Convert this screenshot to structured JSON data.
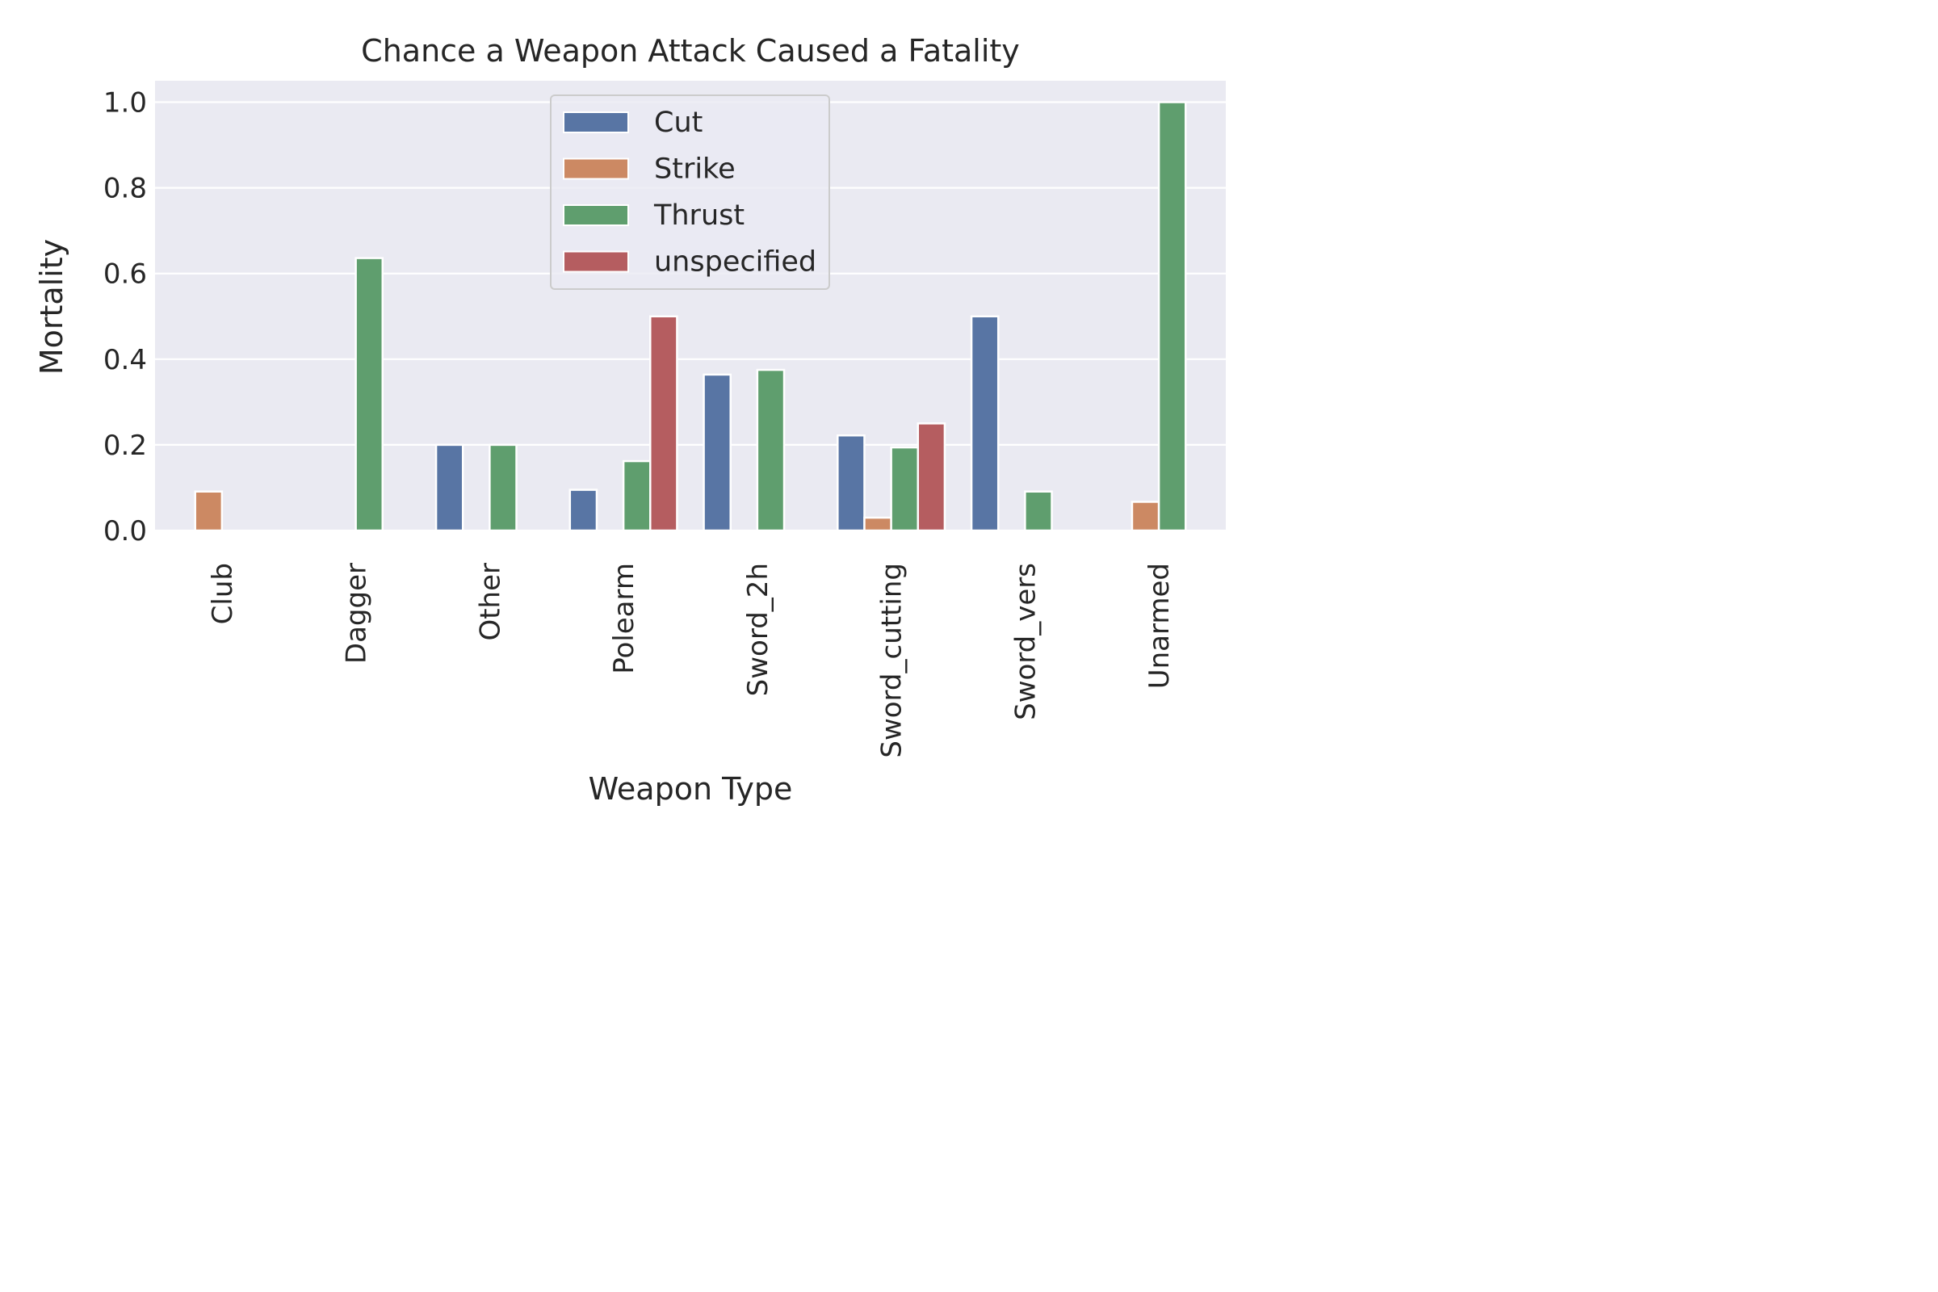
{
  "chart_data": {
    "type": "bar",
    "title": "Chance a Weapon Attack Caused a Fatality",
    "xlabel": "Weapon Type",
    "ylabel": "Mortality",
    "ylim": [
      0,
      1.05
    ],
    "yticks": [
      "0.0",
      "0.2",
      "0.4",
      "0.6",
      "0.8",
      "1.0"
    ],
    "ytick_values": [
      0,
      0.2,
      0.4,
      0.6,
      0.8,
      1.0
    ],
    "grid": true,
    "legend_position": "top-center",
    "categories": [
      "Club",
      "Dagger",
      "Other",
      "Polearm",
      "Sword_2h",
      "Sword_cutting",
      "Sword_vers",
      "Unarmed"
    ],
    "series": [
      {
        "name": "Cut",
        "color": "#5875a4",
        "values": [
          null,
          null,
          0.2,
          0.095,
          0.364,
          0.222,
          0.5,
          null
        ]
      },
      {
        "name": "Strike",
        "color": "#cc8963",
        "values": [
          0.091,
          null,
          null,
          null,
          null,
          0.03,
          null,
          0.067
        ]
      },
      {
        "name": "Thrust",
        "color": "#5f9e6e",
        "values": [
          null,
          0.636,
          0.2,
          0.162,
          0.375,
          0.194,
          0.091,
          1.0
        ]
      },
      {
        "name": "unspecified",
        "color": "#b55d60",
        "values": [
          null,
          null,
          null,
          0.5,
          null,
          0.25,
          null,
          null
        ]
      }
    ]
  }
}
